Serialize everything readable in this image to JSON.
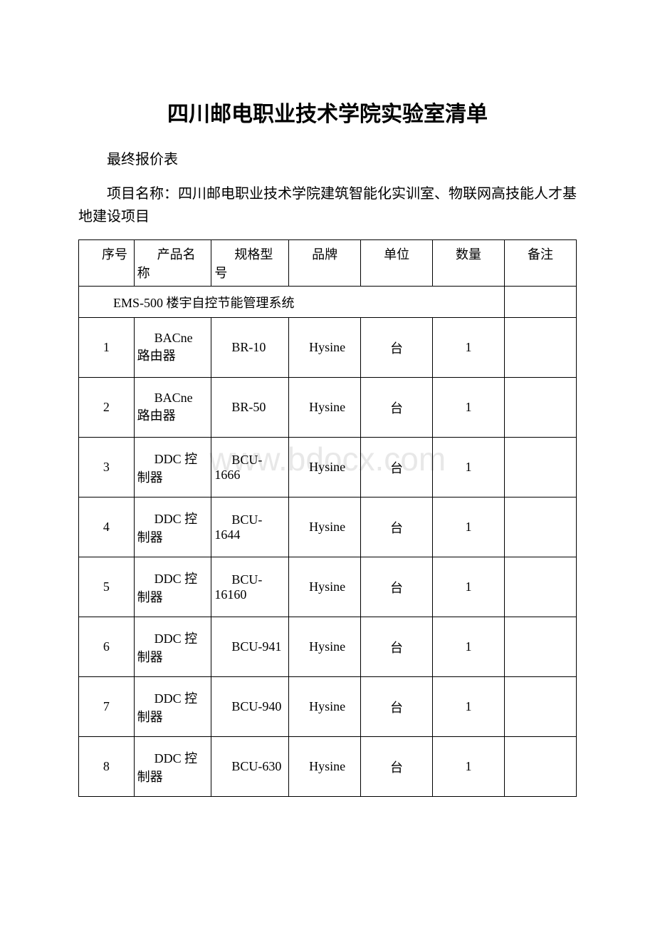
{
  "title": "四川邮电职业技术学院实验室清单",
  "subtitle": "最终报价表",
  "project_name": "项目名称：四川邮电职业技术学院建筑智能化实训室、物联网高技能人才基地建设项目",
  "columns": {
    "seq": "序号",
    "name": "产品名称",
    "model": "规格型号",
    "brand": "品牌",
    "unit": "单位",
    "qty": "数量",
    "remark": "备注"
  },
  "section_title": "EMS-500 楼宇自控节能管理系统",
  "rows": [
    {
      "seq": "1",
      "name": "BACne 路由器",
      "model": "BR-10",
      "brand": "Hysine",
      "unit": "台",
      "qty": "1",
      "remark": ""
    },
    {
      "seq": "2",
      "name": "BACne 路由器",
      "model": "BR-50",
      "brand": "Hysine",
      "unit": "台",
      "qty": "1",
      "remark": ""
    },
    {
      "seq": "3",
      "name": "DDC 控制器",
      "model": "BCU-1666",
      "brand": "Hysine",
      "unit": "台",
      "qty": "1",
      "remark": ""
    },
    {
      "seq": "4",
      "name": "DDC 控制器",
      "model": "BCU-1644",
      "brand": "Hysine",
      "unit": "台",
      "qty": "1",
      "remark": ""
    },
    {
      "seq": "5",
      "name": "DDC 控制器",
      "model": "BCU-16160",
      "brand": "Hysine",
      "unit": "台",
      "qty": "1",
      "remark": ""
    },
    {
      "seq": "6",
      "name": "DDC 控制器",
      "model": "BCU-941",
      "brand": "Hysine",
      "unit": "台",
      "qty": "1",
      "remark": ""
    },
    {
      "seq": "7",
      "name": "DDC 控制器",
      "model": "BCU-940",
      "brand": "Hysine",
      "unit": "台",
      "qty": "1",
      "remark": ""
    },
    {
      "seq": "8",
      "name": "DDC 控制器",
      "model": "BCU-630",
      "brand": "Hysine",
      "unit": "台",
      "qty": "1",
      "remark": ""
    }
  ],
  "watermark": "www.bdocx.com",
  "colors": {
    "text": "#000000",
    "border": "#000000",
    "background": "#ffffff",
    "watermark": "#e8e8e8"
  },
  "fonts": {
    "title_size": 30,
    "body_size": 20,
    "table_size": 18
  }
}
